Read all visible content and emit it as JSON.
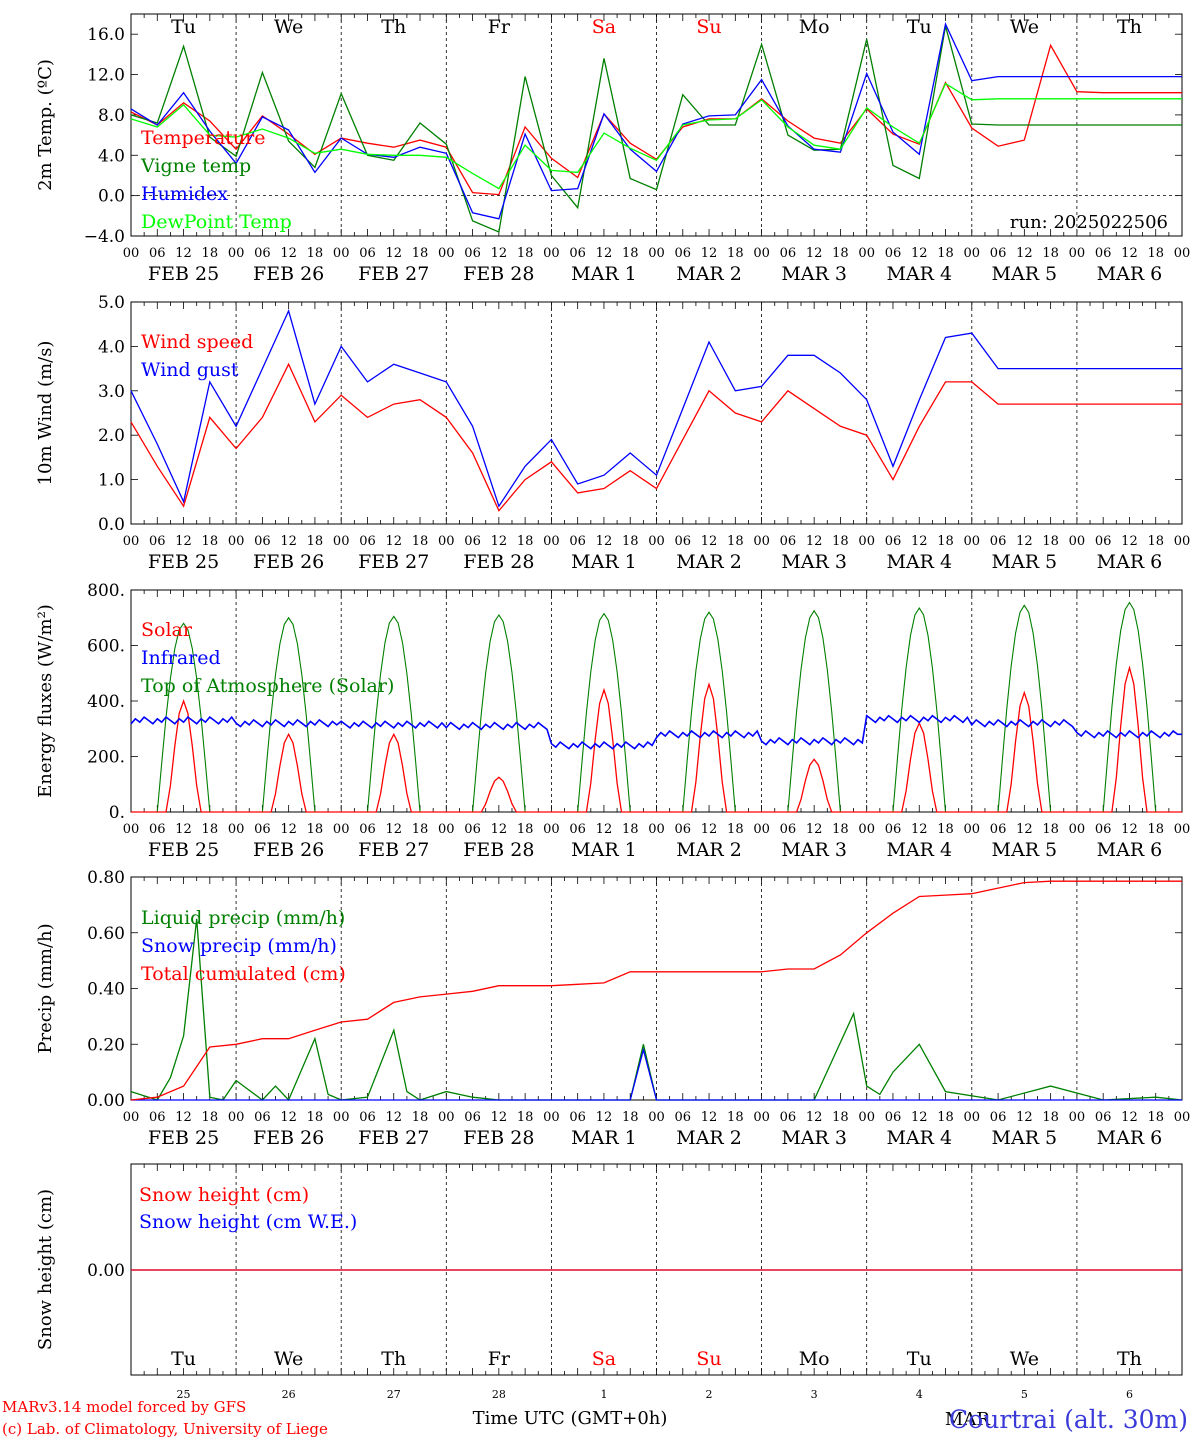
{
  "footer": {
    "model_line": "MARv3.14 model forced by GFS",
    "lab_line": "(c) Lab. of Climatology, University of Liege",
    "xlabel": "Time UTC (GMT+0h)",
    "station": "Courtrai (alt. 30m)"
  },
  "hour_ticks": [
    "00",
    "06",
    "12",
    "18"
  ],
  "date_labels": [
    "FEB 25",
    "FEB 26",
    "FEB 27",
    "FEB 28",
    "MAR  1",
    "MAR  2",
    "MAR  3",
    "MAR  4",
    "MAR  5",
    "MAR  6"
  ],
  "weekdays": [
    "Tu",
    "We",
    "Th",
    "Fr",
    "Sa",
    "Su",
    "Mo",
    "Tu",
    "We",
    "Th"
  ],
  "weekday_colors": [
    "#000000",
    "#000000",
    "#000000",
    "#000000",
    "#ff0000",
    "#ff0000",
    "#000000",
    "#000000",
    "#000000",
    "#000000"
  ],
  "bottom_day_numbers": [
    "25",
    "26",
    "27",
    "28",
    "1",
    "2",
    "3",
    "4",
    "5",
    "6"
  ],
  "bottom_month": "MAR",
  "chart_data": [
    {
      "type": "line",
      "id": "temp",
      "ylabel": "2m Temp. (ºC)",
      "ylim": [
        -4,
        18
      ],
      "yticks": [
        -4,
        0,
        4,
        8,
        12,
        16
      ],
      "ytick_labels": [
        "−4.0",
        "0.0",
        "4.0",
        "8.0",
        "12.0",
        "16.0"
      ],
      "zero_line": true,
      "annotation": "run: 2025022506",
      "x_hours": [
        0,
        6,
        12,
        18,
        24,
        30,
        36,
        42,
        48,
        54,
        60,
        66,
        72,
        78,
        84,
        90,
        96,
        102,
        108,
        114,
        120,
        126,
        132,
        138,
        144,
        150,
        156,
        162,
        168,
        174,
        180,
        186,
        192,
        198,
        204,
        210,
        216,
        222,
        228,
        234,
        240
      ],
      "series": [
        {
          "name": "Temperature",
          "color": "#ff0000",
          "values": [
            8.3,
            7,
            9.2,
            7.4,
            4.6,
            7.9,
            6.1,
            4.1,
            5.7,
            5.2,
            4.8,
            5.5,
            4.8,
            0.3,
            0.1,
            6.8,
            3.7,
            1.8,
            8.1,
            5.2,
            3.6,
            6.8,
            7.6,
            7.6,
            9.6,
            7.4,
            5.7,
            5.2,
            8.6,
            6.1,
            5.1,
            11.2,
            6.7,
            4.9,
            5.5,
            14.9,
            10.3,
            10.2,
            10.2,
            10.2,
            10.2
          ]
        },
        {
          "name": "Vigne temp",
          "color": "#008000",
          "values": [
            8,
            7.2,
            14.8,
            5.8,
            3.9,
            12.2,
            5.4,
            2.8,
            10.1,
            4,
            3.5,
            7.2,
            5.1,
            -2.5,
            -3.6,
            11.8,
            2,
            -1.2,
            13.6,
            1.7,
            0.6,
            10,
            7,
            7,
            15,
            6,
            4.5,
            4.6,
            15.5,
            3,
            1.7,
            16.8,
            7.1,
            7,
            7,
            7,
            7,
            7,
            7,
            7,
            7
          ]
        },
        {
          "name": "Humidex",
          "color": "#0000ff",
          "values": [
            8.6,
            7,
            10.2,
            6.4,
            3.2,
            7.8,
            6.5,
            2.3,
            5.7,
            4.1,
            3.8,
            4.8,
            4.2,
            -1.7,
            -2.3,
            6.1,
            0.5,
            0.7,
            8.1,
            4.6,
            2.4,
            7.1,
            7.9,
            8,
            11.5,
            6.9,
            4.6,
            4.3,
            12.1,
            6.3,
            4.1,
            17,
            11.4,
            11.8,
            11.8,
            11.8,
            11.8,
            11.8,
            11.8,
            11.8,
            11.8
          ]
        },
        {
          "name": "DewPoint Temp",
          "color": "#00ff00",
          "values": [
            7.6,
            6.8,
            9,
            6,
            5.8,
            6.6,
            5.7,
            4.2,
            4.6,
            4.1,
            4,
            4,
            3.8,
            2.2,
            0.7,
            5,
            2.5,
            2.3,
            6.2,
            4.7,
            3.5,
            7,
            7.5,
            7.6,
            9.5,
            6.8,
            5,
            4.6,
            8.7,
            6.8,
            5.2,
            11.1,
            9.5,
            9.6,
            9.6,
            9.6,
            9.6,
            9.6,
            9.6,
            9.6,
            9.6
          ]
        }
      ]
    },
    {
      "type": "line",
      "id": "wind",
      "ylabel": "10m Wind (m/s)",
      "ylim": [
        0,
        5
      ],
      "yticks": [
        0,
        1,
        2,
        3,
        4,
        5
      ],
      "ytick_labels": [
        "0.0",
        "1.0",
        "2.0",
        "3.0",
        "4.0",
        "5.0"
      ],
      "x_hours": [
        0,
        6,
        12,
        18,
        24,
        30,
        36,
        42,
        48,
        54,
        60,
        66,
        72,
        78,
        84,
        90,
        96,
        102,
        108,
        114,
        120,
        126,
        132,
        138,
        144,
        150,
        156,
        162,
        168,
        174,
        180,
        186,
        192,
        198,
        204,
        210,
        216,
        222,
        228,
        234,
        240
      ],
      "series": [
        {
          "name": "Wind speed",
          "color": "#ff0000",
          "values": [
            2.3,
            1.3,
            0.4,
            2.4,
            1.7,
            2.4,
            3.6,
            2.3,
            2.9,
            2.4,
            2.7,
            2.8,
            2.4,
            1.6,
            0.3,
            1,
            1.4,
            0.7,
            0.8,
            1.2,
            0.8,
            1.9,
            3,
            2.5,
            2.3,
            3,
            2.6,
            2.2,
            2,
            1,
            2.2,
            3.2,
            3.2,
            2.7,
            2.7,
            2.7,
            2.7,
            2.7,
            2.7,
            2.7,
            2.7
          ]
        },
        {
          "name": "Wind gust",
          "color": "#0000ff",
          "values": [
            3,
            1.8,
            0.5,
            3.2,
            2.2,
            3.5,
            4.8,
            2.7,
            4,
            3.2,
            3.6,
            3.4,
            3.2,
            2.2,
            0.4,
            1.3,
            1.9,
            0.9,
            1.1,
            1.6,
            1.1,
            2.6,
            4.1,
            3,
            3.1,
            3.8,
            3.8,
            3.4,
            2.8,
            1.3,
            2.8,
            4.2,
            4.3,
            3.5,
            3.5,
            3.5,
            3.5,
            3.5,
            3.5,
            3.5,
            3.5
          ]
        }
      ]
    },
    {
      "type": "line",
      "id": "energy",
      "ylabel": "Energy fluxes (W/m²)",
      "ylim": [
        0,
        800
      ],
      "yticks": [
        0,
        200,
        400,
        600,
        800
      ],
      "ytick_labels": [
        "0.",
        "200.",
        "400.",
        "600.",
        "800."
      ],
      "daily_peaks": {
        "solar": [
          400,
          280,
          280,
          125,
          440,
          460,
          190,
          320,
          430,
          520
        ],
        "toa": [
          680,
          700,
          705,
          710,
          715,
          720,
          725,
          735,
          745,
          755
        ],
        "infrared_mean": [
          330,
          320,
          315,
          310,
          240,
          280,
          255,
          335,
          320,
          280
        ]
      },
      "series": [
        {
          "name": "Solar",
          "color": "#ff0000"
        },
        {
          "name": "Infrared",
          "color": "#0000ff"
        },
        {
          "name": "Top of Atmosphere (Solar)",
          "color": "#008000"
        }
      ]
    },
    {
      "type": "line",
      "id": "precip",
      "ylabel": "Precip (mm/h)",
      "ylim": [
        0,
        0.8
      ],
      "yticks": [
        0,
        0.2,
        0.4,
        0.6,
        0.8
      ],
      "ytick_labels": [
        "0.00",
        "0.20",
        "0.40",
        "0.60",
        "0.80"
      ],
      "series": [
        {
          "name": "Liquid precip (mm/h)",
          "color": "#008000",
          "x_hours": [
            0,
            6,
            9,
            12,
            15,
            18,
            21,
            24,
            30,
            33,
            36,
            42,
            45,
            48,
            54,
            60,
            63,
            66,
            72,
            78,
            84,
            96,
            114,
            117,
            120,
            126,
            156,
            165,
            168,
            171,
            174,
            180,
            186,
            198,
            210,
            222,
            234,
            240
          ],
          "values": [
            0.03,
            0,
            0.08,
            0.23,
            0.65,
            0.01,
            0,
            0.07,
            0,
            0.05,
            0,
            0.22,
            0.02,
            0,
            0.01,
            0.25,
            0.03,
            0,
            0.03,
            0.01,
            0,
            0,
            0,
            0.2,
            0,
            0,
            0,
            0.31,
            0.05,
            0.02,
            0.1,
            0.2,
            0.03,
            0,
            0.05,
            0,
            0.01,
            0
          ]
        },
        {
          "name": "Snow precip (mm/h)",
          "color": "#0000ff",
          "x_hours": [
            0,
            114,
            117,
            120,
            240
          ],
          "values": [
            0,
            0,
            0.18,
            0,
            0
          ]
        },
        {
          "name": "Total cumulated (cm)",
          "color": "#ff0000",
          "x_hours": [
            0,
            6,
            12,
            18,
            24,
            30,
            36,
            42,
            48,
            54,
            60,
            66,
            72,
            78,
            84,
            90,
            96,
            102,
            108,
            114,
            120,
            126,
            132,
            138,
            144,
            150,
            156,
            162,
            168,
            174,
            180,
            186,
            192,
            198,
            204,
            210,
            216,
            222,
            228,
            234,
            240
          ],
          "values": [
            0,
            0.01,
            0.05,
            0.19,
            0.2,
            0.22,
            0.22,
            0.25,
            0.28,
            0.29,
            0.35,
            0.37,
            0.38,
            0.39,
            0.41,
            0.41,
            0.41,
            0.415,
            0.42,
            0.46,
            0.46,
            0.46,
            0.46,
            0.46,
            0.46,
            0.47,
            0.47,
            0.52,
            0.6,
            0.67,
            0.73,
            0.735,
            0.74,
            0.76,
            0.78,
            0.785,
            0.785,
            0.785,
            0.785,
            0.785,
            0.785
          ]
        }
      ]
    },
    {
      "type": "line",
      "id": "snow",
      "ylabel": "Snow height (cm)",
      "yticks": [
        0
      ],
      "ytick_labels": [
        "0.00"
      ],
      "series": [
        {
          "name": "Snow height (cm)",
          "color": "#ff0000",
          "values": [
            0,
            0
          ]
        },
        {
          "name": "Snow height (cm W.E.)",
          "color": "#0000ff",
          "values": [
            0,
            0
          ]
        }
      ]
    }
  ]
}
